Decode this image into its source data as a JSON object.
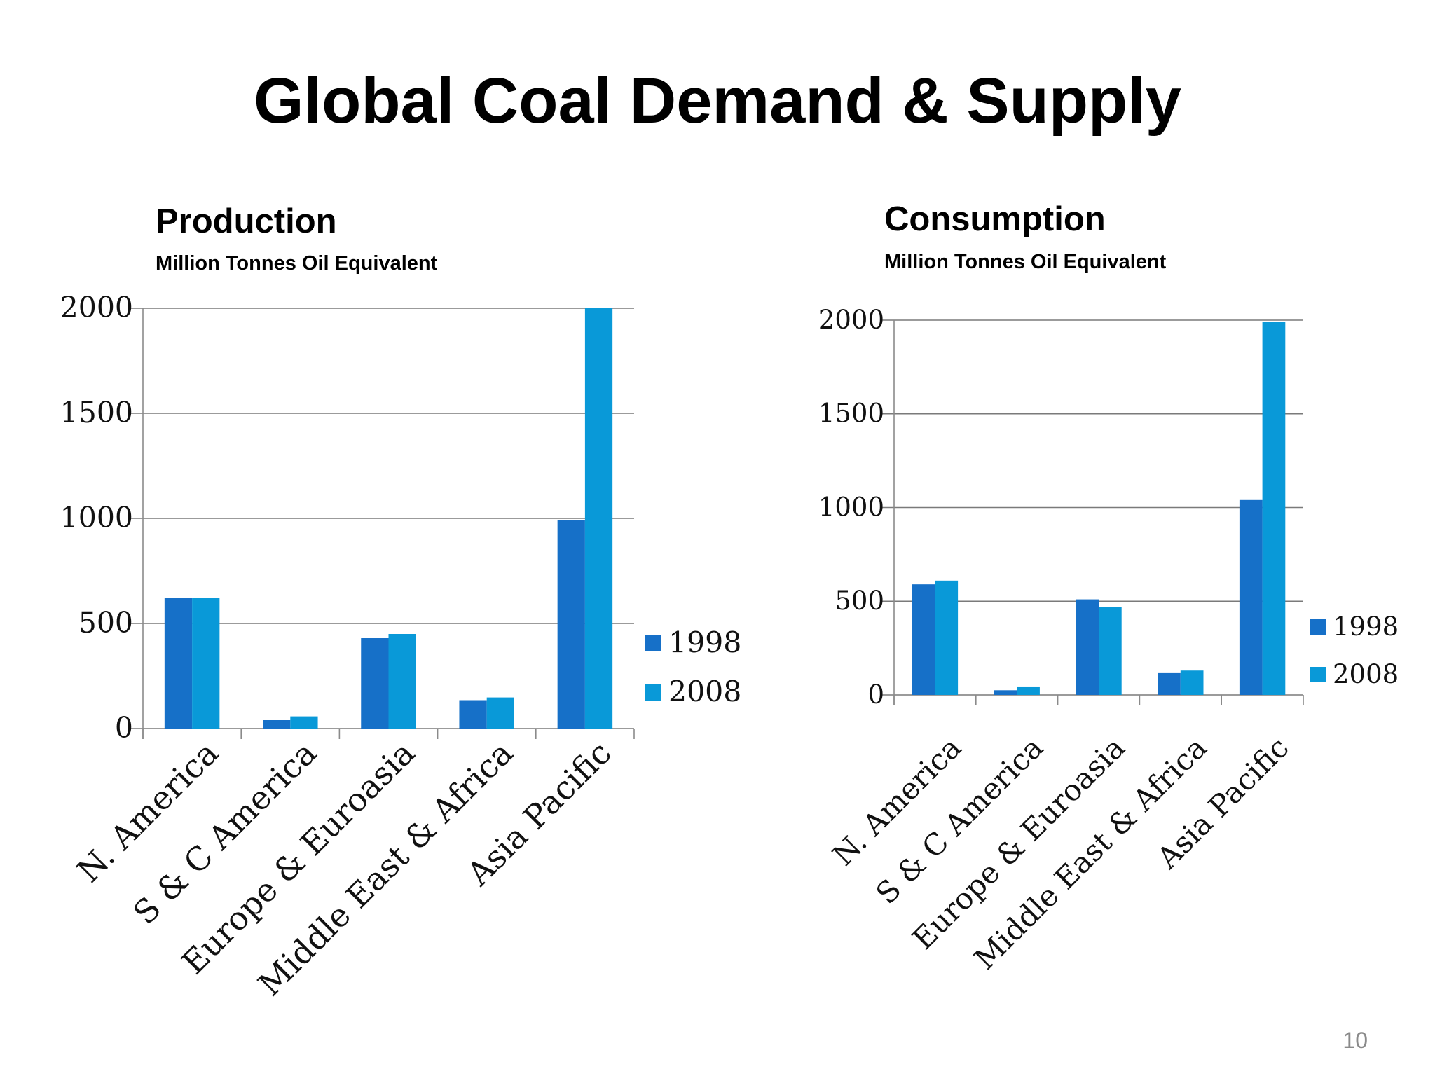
{
  "slide": {
    "title": "Global Coal Demand & Supply",
    "page_number": "10"
  },
  "panels": [
    {
      "title": "Production",
      "subtitle": "Million Tonnes Oil Equivalent"
    },
    {
      "title": "Consumption",
      "subtitle": "Million Tonnes Oil Equivalent"
    }
  ],
  "colors": {
    "series_1998": "#1670c8",
    "series_2008": "#0999d8",
    "grid": "#7a7a7a",
    "axis": "#8a8a8a"
  },
  "chart_data": [
    {
      "type": "bar",
      "title": "Production",
      "subtitle": "Million Tonnes Oil Equivalent",
      "categories": [
        "N. America",
        "S & C America",
        "Europe & Euroasia",
        "Middle East & Africa",
        "Asia Pacific"
      ],
      "series": [
        {
          "name": "1998",
          "values": [
            620,
            40,
            430,
            135,
            990
          ]
        },
        {
          "name": "2008",
          "values": [
            620,
            58,
            450,
            148,
            2000
          ]
        }
      ],
      "yticks": [
        0,
        500,
        1000,
        1500,
        2000
      ],
      "ylim": [
        0,
        2000
      ],
      "grid": true,
      "legend": "right"
    },
    {
      "type": "bar",
      "title": "Consumption",
      "subtitle": "Million Tonnes Oil Equivalent",
      "categories": [
        "N. America",
        "S & C America",
        "Europe & Euroasia",
        "Middle East & Africa",
        "Asia Pacific"
      ],
      "series": [
        {
          "name": "1998",
          "values": [
            590,
            25,
            510,
            120,
            1040
          ]
        },
        {
          "name": "2008",
          "values": [
            610,
            45,
            470,
            130,
            1990
          ]
        }
      ],
      "yticks": [
        0,
        500,
        1000,
        1500,
        2000
      ],
      "ylim": [
        0,
        2000
      ],
      "grid": true,
      "legend": "right"
    }
  ]
}
